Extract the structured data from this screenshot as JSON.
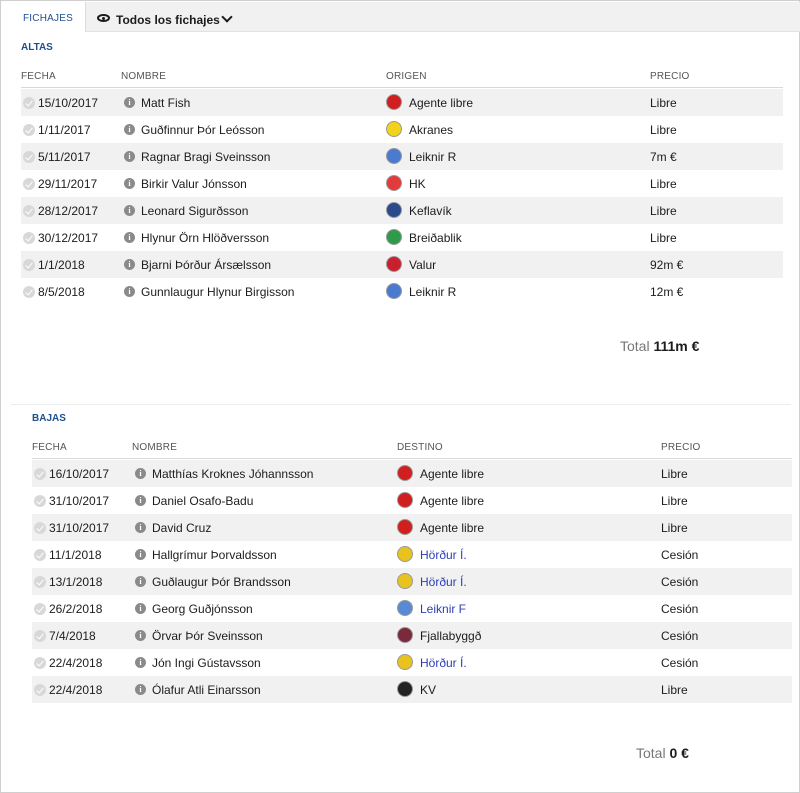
{
  "tabs": {
    "active_label": "FICHAJES",
    "filter_label": "Todos los fichajes"
  },
  "altas": {
    "title": "ALTAS",
    "columns": [
      "FECHA",
      "NOMBRE",
      "ORIGEN",
      "PRECIO"
    ],
    "rows": [
      {
        "date": "15/10/2017",
        "name": "Matt Fish",
        "club": "Agente libre",
        "price": "Libre",
        "badge_color": "#d11f1f"
      },
      {
        "date": "1/11/2017",
        "name": "Guðfinnur Þór Leósson",
        "club": "Akranes",
        "price": "Libre",
        "badge_color": "#f2d21a"
      },
      {
        "date": "5/11/2017",
        "name": "Ragnar Bragi Sveinsson",
        "club": "Leiknir R",
        "price": "7m €",
        "badge_color": "#4b7bd1"
      },
      {
        "date": "29/11/2017",
        "name": "Birkir Valur Jónsson",
        "club": "HK",
        "price": "Libre",
        "badge_color": "#e23b3b"
      },
      {
        "date": "28/12/2017",
        "name": "Leonard Sigurðsson",
        "club": "Keflavík",
        "price": "Libre",
        "badge_color": "#2b4a8c"
      },
      {
        "date": "30/12/2017",
        "name": "Hlynur Örn Hlöðversson",
        "club": "Breiðablik",
        "price": "Libre",
        "badge_color": "#2e9a4a"
      },
      {
        "date": "1/1/2018",
        "name": "Bjarni Þórður Ársælsson",
        "club": "Valur",
        "price": "92m €",
        "badge_color": "#c8202f"
      },
      {
        "date": "8/5/2018",
        "name": "Gunnlaugur Hlynur Birgisson",
        "club": "Leiknir R",
        "price": "12m €",
        "badge_color": "#4b7bd1"
      }
    ],
    "total_label": "Total",
    "total_value": "111m €"
  },
  "bajas": {
    "title": "BAJAS",
    "columns": [
      "FECHA",
      "NOMBRE",
      "DESTINO",
      "PRECIO"
    ],
    "rows": [
      {
        "date": "16/10/2017",
        "name": "Matthías Kroknes Jóhannsson",
        "club": "Agente libre",
        "price": "Libre",
        "badge_color": "#d11f1f",
        "link": false
      },
      {
        "date": "31/10/2017",
        "name": "Daniel Osafo-Badu",
        "club": "Agente libre",
        "price": "Libre",
        "badge_color": "#d11f1f",
        "link": false
      },
      {
        "date": "31/10/2017",
        "name": "David Cruz",
        "club": "Agente libre",
        "price": "Libre",
        "badge_color": "#d11f1f",
        "link": false
      },
      {
        "date": "11/1/2018",
        "name": "Hallgrímur Þorvaldsson",
        "club": "Hörður Í.",
        "price": "Cesión",
        "badge_color": "#e8c21e",
        "link": true
      },
      {
        "date": "13/1/2018",
        "name": "Guðlaugur Þór Brandsson",
        "club": "Hörður Í.",
        "price": "Cesión",
        "badge_color": "#e8c21e",
        "link": true
      },
      {
        "date": "26/2/2018",
        "name": "Georg Guðjónsson",
        "club": "Leiknir F",
        "price": "Cesión",
        "badge_color": "#5a8ad6",
        "link": true
      },
      {
        "date": "7/4/2018",
        "name": "Örvar Þór Sveinsson",
        "club": "Fjallabyggð",
        "price": "Cesión",
        "badge_color": "#7a2a3a",
        "link": false
      },
      {
        "date": "22/4/2018",
        "name": "Jón Ingi Gústavsson",
        "club": "Hörður Í.",
        "price": "Cesión",
        "badge_color": "#e8c21e",
        "link": true
      },
      {
        "date": "22/4/2018",
        "name": "Ólafur Atli Einarsson",
        "club": "KV",
        "price": "Libre",
        "badge_color": "#222222",
        "link": false
      }
    ],
    "total_label": "Total",
    "total_value": "0 €"
  }
}
